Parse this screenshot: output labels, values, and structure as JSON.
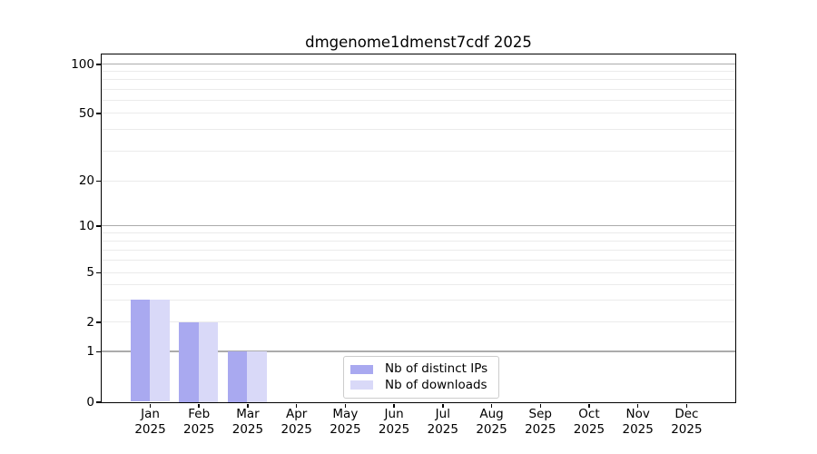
{
  "chart_data": {
    "type": "bar",
    "title": "dmgenome1dmenst7cdf 2025",
    "year": "2025",
    "categories": [
      "Jan",
      "Feb",
      "Mar",
      "Apr",
      "May",
      "Jun",
      "Jul",
      "Aug",
      "Sep",
      "Oct",
      "Nov",
      "Dec"
    ],
    "series": [
      {
        "name": "Nb of distinct IPs",
        "color": "#a9a9f0",
        "values": [
          3,
          2,
          1,
          0,
          0,
          0,
          0,
          0,
          0,
          0,
          0,
          0
        ]
      },
      {
        "name": "Nb of downloads",
        "color": "#d9d9f8",
        "values": [
          3,
          2,
          1,
          0,
          0,
          0,
          0,
          0,
          0,
          0,
          0,
          0
        ]
      }
    ],
    "y_ticks": [
      0,
      1,
      2,
      5,
      10,
      20,
      50,
      100
    ],
    "y_scale": "symlog",
    "ylim": [
      0,
      115
    ],
    "grid": true,
    "legend_position": "lower center inside plot",
    "colors": {
      "major_grid": "#ababab",
      "minor_grid": "#ebebeb",
      "spine": "#000000",
      "background": "#ffffff",
      "legend_border": "#cccccc"
    }
  }
}
